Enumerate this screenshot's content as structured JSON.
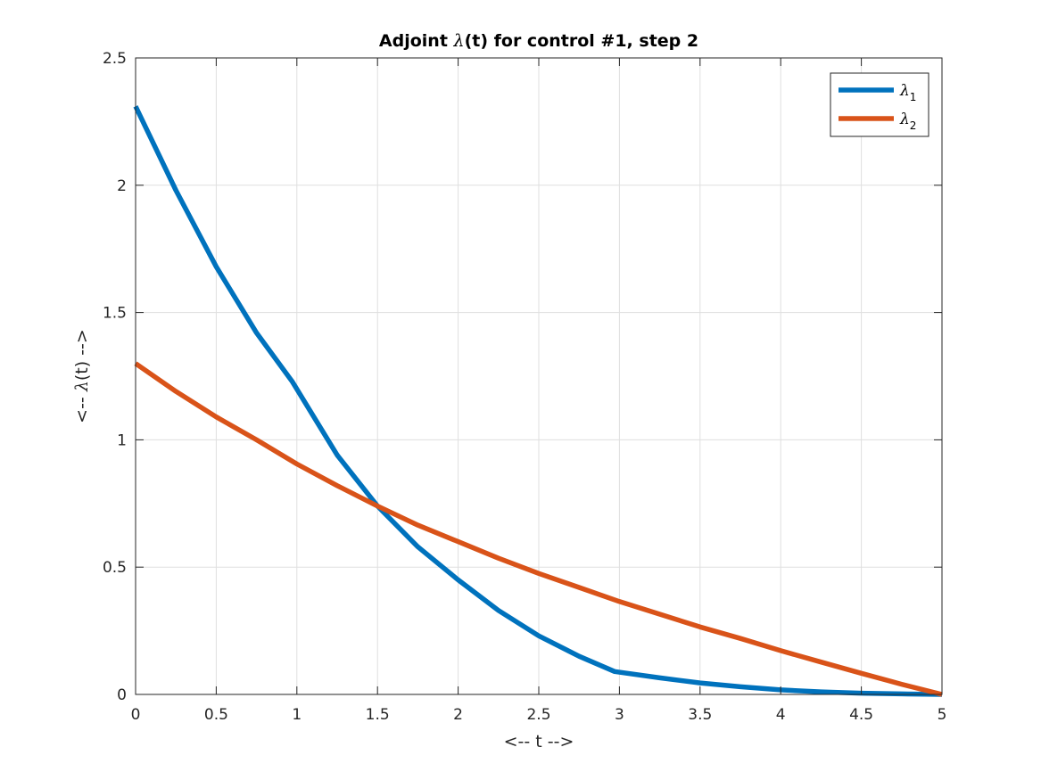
{
  "chart_data": {
    "type": "line",
    "title": {
      "prefix": "Adjoint ",
      "symbol": "λ",
      "suffix": "(t) for control #1, step 2"
    },
    "xlabel": "<-- t -->",
    "ylabel": {
      "prefix": "<-- ",
      "symbol": "λ",
      "suffix": "(t) -->"
    },
    "xlim": [
      0,
      5
    ],
    "ylim": [
      0,
      2.5
    ],
    "xticks": [
      0,
      0.5,
      1,
      1.5,
      2,
      2.5,
      3,
      3.5,
      4,
      4.5,
      5
    ],
    "xtick_labels": [
      "0",
      "0.5",
      "1",
      "1.5",
      "2",
      "2.5",
      "3",
      "3.5",
      "4",
      "4.5",
      "5"
    ],
    "yticks": [
      0,
      0.5,
      1,
      1.5,
      2,
      2.5
    ],
    "ytick_labels": [
      "0",
      "0.5",
      "1",
      "1.5",
      "2",
      "2.5"
    ],
    "grid": true,
    "legend_position": "top-right",
    "series": [
      {
        "name": "λ1",
        "legend_symbol": "λ",
        "legend_sub": "1",
        "color": "#0072BD",
        "x": [
          0,
          0.25,
          0.5,
          0.75,
          0.97,
          1.25,
          1.5,
          1.75,
          2.0,
          2.25,
          2.5,
          2.75,
          2.97,
          3.25,
          3.5,
          3.75,
          4.0,
          4.25,
          4.5,
          4.75,
          5.0
        ],
        "y": [
          2.31,
          1.98,
          1.68,
          1.42,
          1.23,
          0.94,
          0.74,
          0.58,
          0.45,
          0.33,
          0.23,
          0.15,
          0.09,
          0.065,
          0.045,
          0.03,
          0.018,
          0.01,
          0.005,
          0.002,
          0
        ]
      },
      {
        "name": "λ2",
        "legend_symbol": "λ",
        "legend_sub": "2",
        "color": "#D95319",
        "x": [
          0,
          0.25,
          0.5,
          0.75,
          1.0,
          1.25,
          1.5,
          1.75,
          2.0,
          2.25,
          2.5,
          2.75,
          3.0,
          3.25,
          3.5,
          3.75,
          4.0,
          4.25,
          4.5,
          4.75,
          5.0
        ],
        "y": [
          1.3,
          1.19,
          1.09,
          1.0,
          0.905,
          0.82,
          0.74,
          0.665,
          0.6,
          0.535,
          0.475,
          0.42,
          0.365,
          0.315,
          0.265,
          0.22,
          0.172,
          0.127,
          0.083,
          0.04,
          0
        ]
      }
    ]
  }
}
